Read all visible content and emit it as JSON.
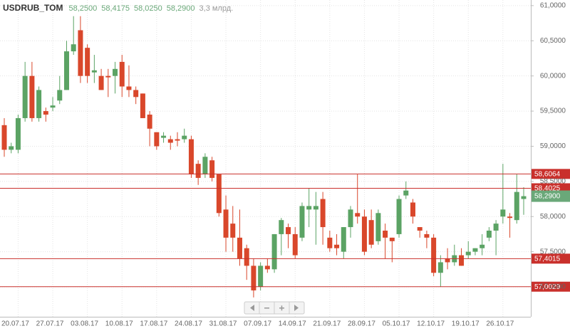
{
  "chart_data": {
    "type": "candlestick",
    "title": "USDRUB_TOM",
    "header_values": [
      "58,2500",
      "58,4175",
      "58,0250",
      "58,2900"
    ],
    "volume_label": "3,3 млрд.",
    "categories": [
      null,
      null,
      "20.07.17",
      null,
      null,
      null,
      null,
      "27.07.17",
      null,
      null,
      null,
      null,
      "03.08.17",
      null,
      null,
      null,
      null,
      "10.08.17",
      null,
      null,
      null,
      null,
      "17.08.17",
      null,
      null,
      null,
      null,
      "24.08.17",
      null,
      null,
      null,
      null,
      "31.08.17",
      null,
      null,
      null,
      null,
      "07.09.17",
      null,
      null,
      null,
      null,
      "14.09.17",
      null,
      null,
      null,
      null,
      "21.09.17",
      null,
      null,
      null,
      null,
      "28.09.17",
      null,
      null,
      null,
      null,
      "05.10.17",
      null,
      null,
      null,
      null,
      "12.10.17",
      null,
      null,
      null,
      null,
      "19.10.17",
      null,
      null,
      null,
      null,
      "26.10.17",
      null,
      null,
      null
    ],
    "open": [
      59.3,
      58.95,
      58.95,
      59.4,
      60.0,
      59.4,
      59.5,
      59.55,
      59.65,
      59.8,
      60.35,
      60.65,
      60.4,
      60.05,
      60.0,
      60.0,
      60.0,
      60.2,
      59.85,
      59.8,
      59.75,
      59.45,
      59.2,
      59.12,
      59.1,
      59.1,
      59.1,
      59.1,
      58.75,
      58.6,
      58.8,
      58.6,
      58.1,
      57.9,
      57.7,
      57.55,
      57.3,
      57.0,
      57.3,
      57.25,
      57.75,
      57.85,
      57.75,
      57.7,
      58.1,
      58.1,
      58.25,
      57.7,
      57.6,
      57.5,
      57.85,
      58.05,
      58.0,
      57.95,
      57.65,
      57.8,
      57.7,
      57.75,
      58.3,
      58.2,
      57.85,
      57.75,
      57.7,
      57.2,
      57.4,
      57.35,
      57.45,
      57.45,
      57.5,
      57.55,
      57.7,
      57.8,
      58.0,
      58.0,
      57.95,
      58.25
    ],
    "high": [
      59.4,
      59.05,
      59.45,
      60.2,
      60.2,
      59.85,
      59.55,
      59.7,
      60.0,
      60.5,
      60.85,
      60.85,
      60.45,
      60.3,
      60.1,
      60.1,
      60.2,
      60.3,
      60.15,
      59.85,
      59.75,
      59.5,
      59.2,
      59.2,
      59.15,
      59.2,
      59.25,
      59.15,
      58.8,
      58.9,
      58.85,
      58.6,
      58.3,
      58.15,
      58.1,
      57.6,
      57.4,
      57.35,
      57.4,
      57.75,
      57.98,
      57.9,
      57.85,
      58.2,
      58.4,
      58.35,
      58.35,
      57.8,
      57.75,
      57.85,
      58.15,
      58.6,
      58.1,
      58.1,
      58.1,
      57.9,
      57.7,
      58.3,
      58.5,
      58.25,
      57.85,
      57.8,
      57.75,
      57.45,
      57.55,
      57.6,
      57.55,
      57.65,
      57.55,
      57.75,
      57.85,
      57.95,
      58.75,
      58.05,
      58.6,
      58.4175
    ],
    "low": [
      58.85,
      58.9,
      58.9,
      59.35,
      59.35,
      59.35,
      59.35,
      59.5,
      59.6,
      59.8,
      60.3,
      59.9,
      59.9,
      59.9,
      59.8,
      59.7,
      59.75,
      59.7,
      59.7,
      59.6,
      59.4,
      59.0,
      58.95,
      59.05,
      58.95,
      59.0,
      59.05,
      58.55,
      58.45,
      58.55,
      58.5,
      58.0,
      57.5,
      57.5,
      57.3,
      57.1,
      56.85,
      56.95,
      57.2,
      57.2,
      57.45,
      57.55,
      57.4,
      57.65,
      57.85,
      57.6,
      57.6,
      57.5,
      57.45,
      57.4,
      57.7,
      57.9,
      57.45,
      57.55,
      57.6,
      57.4,
      57.35,
      57.7,
      58.25,
      57.9,
      57.7,
      57.55,
      57.15,
      57.0,
      57.25,
      57.3,
      57.3,
      57.4,
      57.45,
      57.45,
      57.65,
      57.45,
      57.9,
      57.7,
      57.9,
      58.025
    ],
    "close": [
      58.95,
      59.0,
      59.4,
      60.0,
      59.4,
      59.8,
      59.45,
      59.58,
      59.8,
      60.35,
      60.45,
      60.0,
      60.0,
      60.08,
      59.8,
      59.98,
      60.1,
      59.85,
      59.8,
      59.7,
      59.4,
      59.25,
      59.0,
      59.15,
      59.05,
      59.08,
      59.15,
      58.6,
      58.55,
      58.85,
      58.55,
      58.05,
      57.7,
      57.7,
      57.4,
      57.3,
      56.95,
      57.3,
      57.25,
      57.75,
      57.95,
      57.75,
      57.45,
      58.15,
      58.15,
      58.15,
      57.85,
      57.55,
      57.55,
      57.85,
      58.1,
      58.0,
      57.5,
      57.6,
      58.05,
      57.7,
      57.65,
      58.25,
      58.37,
      58.0,
      57.8,
      57.7,
      57.2,
      57.35,
      57.35,
      57.45,
      57.3,
      57.5,
      57.55,
      57.6,
      57.8,
      57.9,
      58.1,
      57.98,
      58.35,
      58.29
    ],
    "up_color": "#5ba364",
    "down_color": "#d9472b",
    "level_color": "#c9302c",
    "last_color": "#6aa879",
    "ylim": [
      56.575,
      61.08
    ],
    "yticks": [
      {
        "value": 57,
        "label": "57,0000"
      },
      {
        "value": 57.5,
        "label": "57,5000"
      },
      {
        "value": 58,
        "label": "58,0000"
      },
      {
        "value": 58.5,
        "label": "58,5000"
      },
      {
        "value": 59,
        "label": "59,0000"
      },
      {
        "value": 59.5,
        "label": "59,5000"
      },
      {
        "value": 60,
        "label": "60,0000"
      },
      {
        "value": 60.5,
        "label": "60,5000"
      },
      {
        "value": 61,
        "label": "61,0000"
      }
    ],
    "levels": [
      {
        "value": 58.6064,
        "label": "58,6064"
      },
      {
        "value": 58.4025,
        "label": "58,4025"
      },
      {
        "value": 57.4015,
        "label": "57,4015"
      },
      {
        "value": 57.0029,
        "label": "57,0029"
      }
    ],
    "last_price": {
      "value": 58.29,
      "label": "58,2900"
    },
    "grid": true
  }
}
